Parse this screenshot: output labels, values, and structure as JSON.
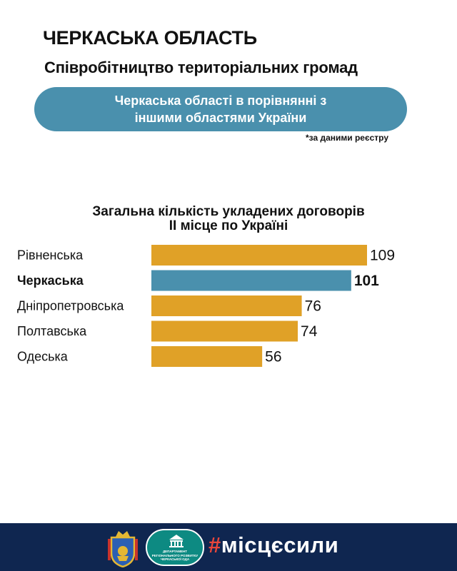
{
  "header": {
    "title": "ЧЕРКАСЬКА ОБЛАСТЬ",
    "subtitle": "Співробітництво територіальних громад"
  },
  "banner": {
    "line1": "Черкаська області в порівнянні з",
    "line2": "іншими областями України"
  },
  "source_note": "*за даними реєстру",
  "chart_data": {
    "type": "bar",
    "orientation": "horizontal",
    "title": "Загальна кількість укладених договорів",
    "subtitle": "ІІ місце по Україні",
    "categories": [
      "Рівненська",
      "Черкаська",
      "Дніпропетровська",
      "Полтавська",
      "Одеська"
    ],
    "values": [
      109,
      101,
      76,
      74,
      56
    ],
    "highlight": "Черкаська",
    "colors": {
      "default": "#e0a127",
      "highlight": "#4a90ad"
    },
    "xlim": [
      0,
      109
    ],
    "grid": false,
    "legend": "none"
  },
  "footer": {
    "crest_icon": "cherkasy-coat-of-arms-icon",
    "logo_icon": "department-building-icon",
    "department_text": "ДЕПАРТАМЕНТ РЕГІОНАЛЬНОГО РОЗВИТКУ ЧЕРКАСЬКОЇ ОДА",
    "hashtag_symbol": "#",
    "hashtag_text": "місцєсили",
    "background": "#0f2650"
  }
}
